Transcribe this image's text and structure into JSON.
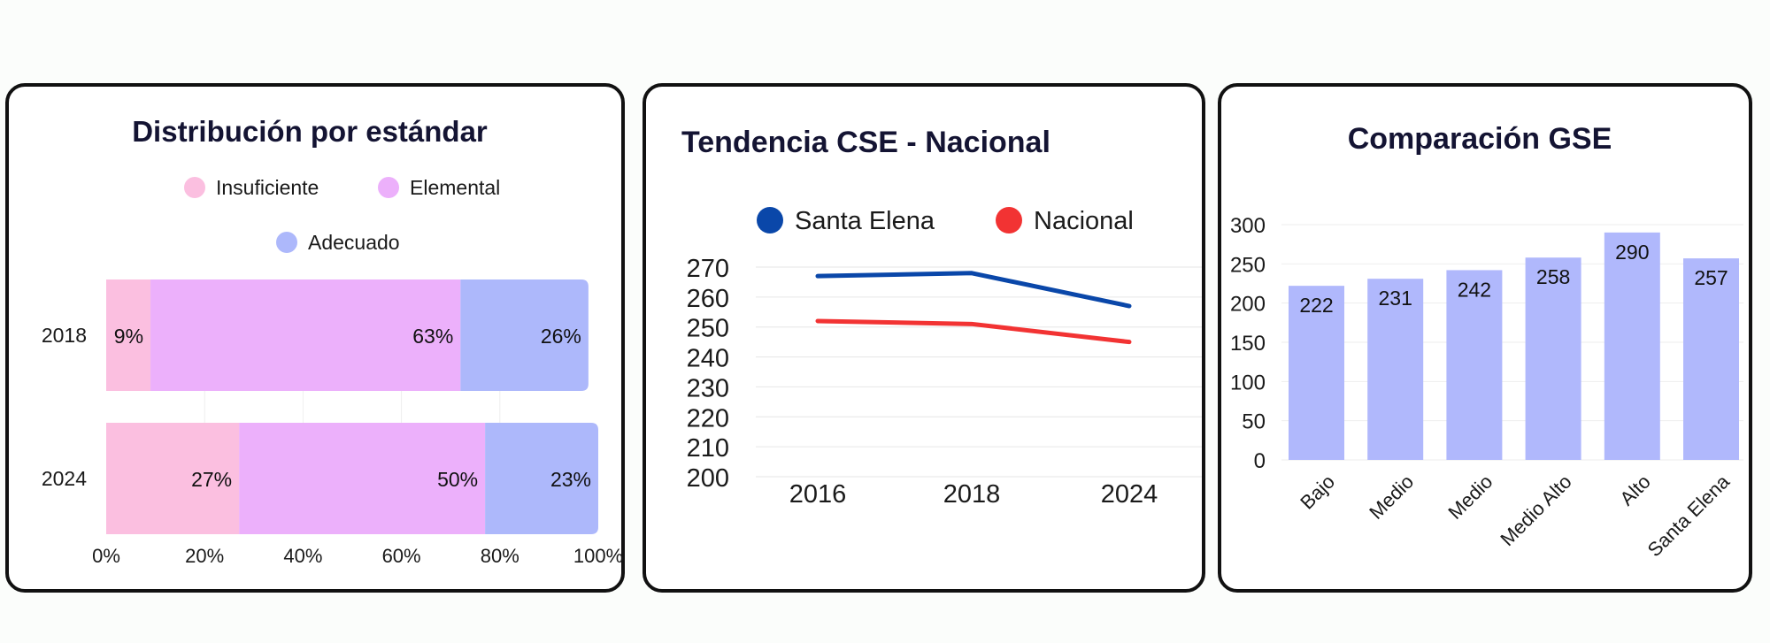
{
  "chart_data": [
    {
      "type": "bar",
      "orientation": "horizontal",
      "stacked": true,
      "title": "Distribución por estándar",
      "categories": [
        "2018",
        "2024"
      ],
      "series": [
        {
          "name": "Insuficiente",
          "color": "#fbbfe0",
          "values": [
            9,
            27
          ]
        },
        {
          "name": "Elemental",
          "color": "#ecb0fb",
          "values": [
            63,
            50
          ]
        },
        {
          "name": "Adecuado",
          "color": "#adb8fb",
          "values": [
            26,
            23
          ]
        }
      ],
      "value_suffix": "%",
      "xlim": [
        0,
        100
      ],
      "x_ticks": [
        "0%",
        "20%",
        "40%",
        "60%",
        "80%",
        "100%"
      ],
      "legend_position": "top"
    },
    {
      "type": "line",
      "title": "Tendencia CSE - Nacional",
      "x": [
        "2016",
        "2018",
        "2024"
      ],
      "series": [
        {
          "name": "Santa Elena",
          "color": "#0a47a9",
          "values": [
            267,
            268,
            257
          ]
        },
        {
          "name": "Nacional",
          "color": "#f23333",
          "values": [
            252,
            251,
            245
          ]
        }
      ],
      "ylim": [
        200,
        270
      ],
      "y_ticks": [
        200,
        210,
        220,
        230,
        240,
        250,
        260,
        270
      ],
      "grid": true,
      "legend_position": "top"
    },
    {
      "type": "bar",
      "title": "Comparación GSE",
      "categories": [
        "Bajo",
        "Medio",
        "Medio",
        "Medio Alto",
        "Alto",
        "Santa Elena"
      ],
      "values": [
        222,
        231,
        242,
        258,
        290,
        257
      ],
      "color": "#b0b8fc",
      "ylim": [
        0,
        300
      ],
      "y_ticks": [
        0,
        50,
        100,
        150,
        200,
        250,
        300
      ],
      "grid": true
    }
  ]
}
